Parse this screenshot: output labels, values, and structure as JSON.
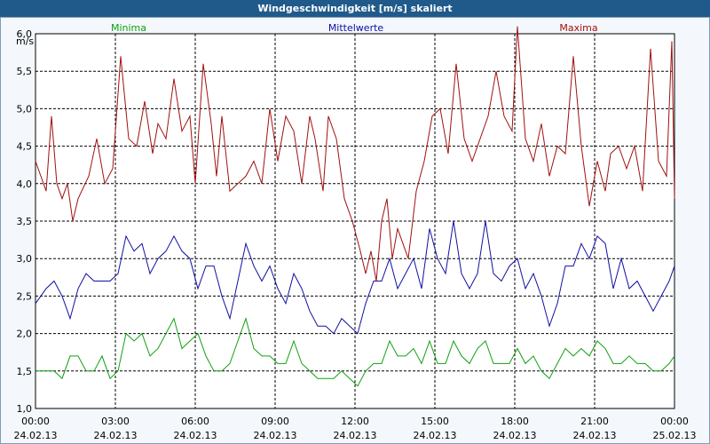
{
  "window": {
    "title": "Windgeschwindigkeit [m/s] skaliert"
  },
  "chart_data": {
    "type": "line",
    "title": "Windgeschwindigkeit [m/s] skaliert",
    "ylabel": "m/s",
    "ylim": [
      1.0,
      6.0
    ],
    "yticks": [
      "6,0",
      "5,5",
      "5,0",
      "4,5",
      "4,0",
      "3,5",
      "3,0",
      "2,5",
      "2,0",
      "1,5",
      "1,0"
    ],
    "xticks": [
      {
        "time": "00:00",
        "date": "24.02.13"
      },
      {
        "time": "03:00",
        "date": "24.02.13"
      },
      {
        "time": "06:00",
        "date": "24.02.13"
      },
      {
        "time": "09:00",
        "date": "24.02.13"
      },
      {
        "time": "12:00",
        "date": "24.02.13"
      },
      {
        "time": "15:00",
        "date": "24.02.13"
      },
      {
        "time": "18:00",
        "date": "24.02.13"
      },
      {
        "time": "21:00",
        "date": "24.02.13"
      },
      {
        "time": "00:00",
        "date": "25.02.13"
      }
    ],
    "x_hours_range": [
      0,
      24
    ],
    "legend": [
      "Minima",
      "Mittelwerte",
      "Maxima"
    ],
    "series": [
      {
        "name": "Maxima",
        "color": "#a01010",
        "points": [
          [
            0,
            4.3
          ],
          [
            0.4,
            3.9
          ],
          [
            0.6,
            4.9
          ],
          [
            0.8,
            4.0
          ],
          [
            1.0,
            3.8
          ],
          [
            1.2,
            4.0
          ],
          [
            1.4,
            3.5
          ],
          [
            1.6,
            3.8
          ],
          [
            2.0,
            4.1
          ],
          [
            2.3,
            4.6
          ],
          [
            2.6,
            4.0
          ],
          [
            2.9,
            4.2
          ],
          [
            3.2,
            5.7
          ],
          [
            3.5,
            4.6
          ],
          [
            3.8,
            4.5
          ],
          [
            4.1,
            5.1
          ],
          [
            4.4,
            4.4
          ],
          [
            4.6,
            4.8
          ],
          [
            4.9,
            4.6
          ],
          [
            5.2,
            5.4
          ],
          [
            5.5,
            4.7
          ],
          [
            5.8,
            4.9
          ],
          [
            6.0,
            4.0
          ],
          [
            6.3,
            5.6
          ],
          [
            6.6,
            4.8
          ],
          [
            6.8,
            4.1
          ],
          [
            7.0,
            4.9
          ],
          [
            7.3,
            3.9
          ],
          [
            7.6,
            4.0
          ],
          [
            7.9,
            4.1
          ],
          [
            8.2,
            4.3
          ],
          [
            8.5,
            4.0
          ],
          [
            8.8,
            5.0
          ],
          [
            9.1,
            4.3
          ],
          [
            9.4,
            4.9
          ],
          [
            9.7,
            4.7
          ],
          [
            10.0,
            4.0
          ],
          [
            10.3,
            4.9
          ],
          [
            10.5,
            4.6
          ],
          [
            10.8,
            3.9
          ],
          [
            11.0,
            4.9
          ],
          [
            11.3,
            4.6
          ],
          [
            11.6,
            3.8
          ],
          [
            11.9,
            3.5
          ],
          [
            12.2,
            3.1
          ],
          [
            12.4,
            2.8
          ],
          [
            12.6,
            3.1
          ],
          [
            12.8,
            2.7
          ],
          [
            13.0,
            3.5
          ],
          [
            13.2,
            3.8
          ],
          [
            13.4,
            3.0
          ],
          [
            13.6,
            3.4
          ],
          [
            13.8,
            3.2
          ],
          [
            14.0,
            3.0
          ],
          [
            14.3,
            3.9
          ],
          [
            14.6,
            4.3
          ],
          [
            14.9,
            4.9
          ],
          [
            15.2,
            5.0
          ],
          [
            15.5,
            4.4
          ],
          [
            15.8,
            5.6
          ],
          [
            16.1,
            4.6
          ],
          [
            16.4,
            4.3
          ],
          [
            16.7,
            4.6
          ],
          [
            17.0,
            4.9
          ],
          [
            17.3,
            5.5
          ],
          [
            17.6,
            4.9
          ],
          [
            17.9,
            4.7
          ],
          [
            18.1,
            6.1
          ],
          [
            18.4,
            4.6
          ],
          [
            18.7,
            4.3
          ],
          [
            19.0,
            4.8
          ],
          [
            19.3,
            4.1
          ],
          [
            19.6,
            4.5
          ],
          [
            19.9,
            4.4
          ],
          [
            20.2,
            5.7
          ],
          [
            20.5,
            4.5
          ],
          [
            20.8,
            3.7
          ],
          [
            21.1,
            4.3
          ],
          [
            21.4,
            3.9
          ],
          [
            21.6,
            4.4
          ],
          [
            21.9,
            4.5
          ],
          [
            22.2,
            4.2
          ],
          [
            22.5,
            4.5
          ],
          [
            22.8,
            3.9
          ],
          [
            23.1,
            5.8
          ],
          [
            23.4,
            4.3
          ],
          [
            23.7,
            4.1
          ],
          [
            23.9,
            5.9
          ],
          [
            24.0,
            3.8
          ]
        ]
      },
      {
        "name": "Mittelwerte",
        "color": "#1010a0",
        "points": [
          [
            0,
            2.4
          ],
          [
            0.4,
            2.6
          ],
          [
            0.7,
            2.7
          ],
          [
            1.0,
            2.5
          ],
          [
            1.3,
            2.2
          ],
          [
            1.6,
            2.6
          ],
          [
            1.9,
            2.8
          ],
          [
            2.2,
            2.7
          ],
          [
            2.5,
            2.7
          ],
          [
            2.8,
            2.7
          ],
          [
            3.1,
            2.8
          ],
          [
            3.4,
            3.3
          ],
          [
            3.7,
            3.1
          ],
          [
            4.0,
            3.2
          ],
          [
            4.3,
            2.8
          ],
          [
            4.6,
            3.0
          ],
          [
            4.9,
            3.1
          ],
          [
            5.2,
            3.3
          ],
          [
            5.5,
            3.1
          ],
          [
            5.8,
            3.0
          ],
          [
            6.1,
            2.6
          ],
          [
            6.4,
            2.9
          ],
          [
            6.7,
            2.9
          ],
          [
            7.0,
            2.5
          ],
          [
            7.3,
            2.2
          ],
          [
            7.6,
            2.7
          ],
          [
            7.9,
            3.2
          ],
          [
            8.2,
            2.9
          ],
          [
            8.5,
            2.7
          ],
          [
            8.8,
            2.9
          ],
          [
            9.1,
            2.6
          ],
          [
            9.4,
            2.4
          ],
          [
            9.7,
            2.8
          ],
          [
            10.0,
            2.6
          ],
          [
            10.3,
            2.3
          ],
          [
            10.6,
            2.1
          ],
          [
            10.9,
            2.1
          ],
          [
            11.2,
            2.0
          ],
          [
            11.5,
            2.2
          ],
          [
            11.8,
            2.1
          ],
          [
            12.1,
            2.0
          ],
          [
            12.4,
            2.4
          ],
          [
            12.7,
            2.7
          ],
          [
            13.0,
            2.7
          ],
          [
            13.3,
            3.0
          ],
          [
            13.6,
            2.6
          ],
          [
            13.9,
            2.8
          ],
          [
            14.2,
            3.0
          ],
          [
            14.5,
            2.6
          ],
          [
            14.8,
            3.4
          ],
          [
            15.1,
            3.0
          ],
          [
            15.4,
            2.8
          ],
          [
            15.7,
            3.5
          ],
          [
            16.0,
            2.8
          ],
          [
            16.3,
            2.6
          ],
          [
            16.6,
            2.8
          ],
          [
            16.9,
            3.5
          ],
          [
            17.2,
            2.8
          ],
          [
            17.5,
            2.7
          ],
          [
            17.8,
            2.9
          ],
          [
            18.1,
            3.0
          ],
          [
            18.4,
            2.6
          ],
          [
            18.7,
            2.8
          ],
          [
            19.0,
            2.5
          ],
          [
            19.3,
            2.1
          ],
          [
            19.6,
            2.4
          ],
          [
            19.9,
            2.9
          ],
          [
            20.2,
            2.9
          ],
          [
            20.5,
            3.2
          ],
          [
            20.8,
            3.0
          ],
          [
            21.1,
            3.3
          ],
          [
            21.4,
            3.2
          ],
          [
            21.7,
            2.6
          ],
          [
            22.0,
            3.0
          ],
          [
            22.3,
            2.6
          ],
          [
            22.6,
            2.7
          ],
          [
            22.9,
            2.5
          ],
          [
            23.2,
            2.3
          ],
          [
            23.5,
            2.5
          ],
          [
            23.8,
            2.7
          ],
          [
            24.0,
            2.9
          ]
        ]
      },
      {
        "name": "Minima",
        "color": "#10a010",
        "points": [
          [
            0,
            1.5
          ],
          [
            0.4,
            1.5
          ],
          [
            0.7,
            1.5
          ],
          [
            1.0,
            1.4
          ],
          [
            1.3,
            1.7
          ],
          [
            1.6,
            1.7
          ],
          [
            1.9,
            1.5
          ],
          [
            2.2,
            1.5
          ],
          [
            2.5,
            1.7
          ],
          [
            2.8,
            1.4
          ],
          [
            3.1,
            1.5
          ],
          [
            3.4,
            2.0
          ],
          [
            3.7,
            1.9
          ],
          [
            4.0,
            2.0
          ],
          [
            4.3,
            1.7
          ],
          [
            4.6,
            1.8
          ],
          [
            4.9,
            2.0
          ],
          [
            5.2,
            2.2
          ],
          [
            5.5,
            1.8
          ],
          [
            5.8,
            1.9
          ],
          [
            6.1,
            2.0
          ],
          [
            6.4,
            1.7
          ],
          [
            6.7,
            1.5
          ],
          [
            7.0,
            1.5
          ],
          [
            7.3,
            1.6
          ],
          [
            7.6,
            1.9
          ],
          [
            7.9,
            2.2
          ],
          [
            8.2,
            1.8
          ],
          [
            8.5,
            1.7
          ],
          [
            8.8,
            1.7
          ],
          [
            9.1,
            1.6
          ],
          [
            9.4,
            1.6
          ],
          [
            9.7,
            1.9
          ],
          [
            10.0,
            1.6
          ],
          [
            10.3,
            1.5
          ],
          [
            10.6,
            1.4
          ],
          [
            10.9,
            1.4
          ],
          [
            11.2,
            1.4
          ],
          [
            11.5,
            1.5
          ],
          [
            11.8,
            1.4
          ],
          [
            12.1,
            1.3
          ],
          [
            12.4,
            1.5
          ],
          [
            12.7,
            1.6
          ],
          [
            13.0,
            1.6
          ],
          [
            13.3,
            1.9
          ],
          [
            13.6,
            1.7
          ],
          [
            13.9,
            1.7
          ],
          [
            14.2,
            1.8
          ],
          [
            14.5,
            1.6
          ],
          [
            14.8,
            1.9
          ],
          [
            15.1,
            1.6
          ],
          [
            15.4,
            1.6
          ],
          [
            15.7,
            1.9
          ],
          [
            16.0,
            1.7
          ],
          [
            16.3,
            1.6
          ],
          [
            16.6,
            1.8
          ],
          [
            16.9,
            1.9
          ],
          [
            17.2,
            1.6
          ],
          [
            17.5,
            1.6
          ],
          [
            17.8,
            1.6
          ],
          [
            18.1,
            1.8
          ],
          [
            18.4,
            1.6
          ],
          [
            18.7,
            1.7
          ],
          [
            19.0,
            1.5
          ],
          [
            19.3,
            1.4
          ],
          [
            19.6,
            1.6
          ],
          [
            19.9,
            1.8
          ],
          [
            20.2,
            1.7
          ],
          [
            20.5,
            1.8
          ],
          [
            20.8,
            1.7
          ],
          [
            21.1,
            1.9
          ],
          [
            21.4,
            1.8
          ],
          [
            21.7,
            1.6
          ],
          [
            22.0,
            1.6
          ],
          [
            22.3,
            1.7
          ],
          [
            22.6,
            1.6
          ],
          [
            22.9,
            1.6
          ],
          [
            23.2,
            1.5
          ],
          [
            23.5,
            1.5
          ],
          [
            23.8,
            1.6
          ],
          [
            24.0,
            1.7
          ]
        ]
      }
    ]
  }
}
